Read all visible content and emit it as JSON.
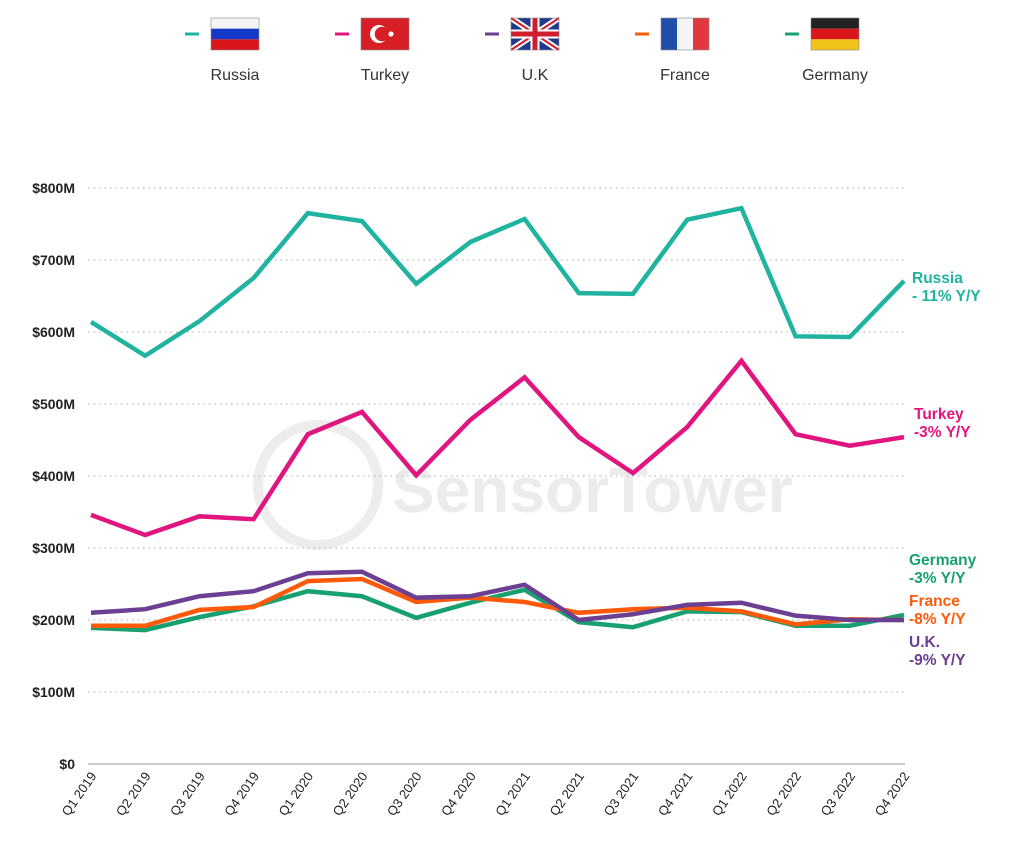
{
  "chart_data": {
    "type": "line",
    "title": "",
    "xlabel": "",
    "ylabel": "",
    "watermark": "SensorTower",
    "categories": [
      "Q1 2019",
      "Q2 2019",
      "Q3 2019",
      "Q4 2019",
      "Q1 2020",
      "Q2 2020",
      "Q3 2020",
      "Q4 2020",
      "Q1 2021",
      "Q2 2021",
      "Q3 2021",
      "Q4 2021",
      "Q1 2022",
      "Q2 2022",
      "Q3 2022",
      "Q4 2022"
    ],
    "ylim": [
      0,
      800
    ],
    "yticks": [
      {
        "value": 0,
        "label": "$0"
      },
      {
        "value": 100,
        "label": "$100M"
      },
      {
        "value": 200,
        "label": "$200M"
      },
      {
        "value": 300,
        "label": "$300M"
      },
      {
        "value": 400,
        "label": "$400M"
      },
      {
        "value": 500,
        "label": "$500M"
      },
      {
        "value": 600,
        "label": "$600M"
      },
      {
        "value": 700,
        "label": "$700M"
      },
      {
        "value": 800,
        "label": "$800M"
      }
    ],
    "grid": "horizontal-dotted",
    "legend_position": "top",
    "series": [
      {
        "name": "Russia",
        "color": "#1fb3a0",
        "flag": "russia-flag",
        "end_label": [
          "Russia",
          "- 11% Y/Y"
        ],
        "values": [
          614,
          567,
          615,
          675,
          765,
          754,
          667,
          725,
          757,
          654,
          653,
          756,
          772,
          594,
          593,
          671
        ]
      },
      {
        "name": "Turkey",
        "color": "#e0157f",
        "flag": "turkey-flag",
        "end_label": [
          "Turkey",
          "-3% Y/Y"
        ],
        "values": [
          346,
          318,
          344,
          340,
          458,
          489,
          401,
          478,
          537,
          454,
          404,
          468,
          560,
          458,
          442,
          454
        ]
      },
      {
        "name": "U.K",
        "color": "#6b3f91",
        "flag": "uk-flag",
        "end_label": [
          "U.K.",
          "-9% Y/Y"
        ],
        "values": [
          210,
          215,
          233,
          240,
          265,
          267,
          231,
          233,
          249,
          200,
          208,
          221,
          224,
          206,
          200,
          200
        ]
      },
      {
        "name": "France",
        "color": "#ff5a0a",
        "flag": "france-flag",
        "end_label": [
          "France",
          "-8% Y/Y"
        ],
        "values": [
          192,
          192,
          214,
          218,
          254,
          257,
          225,
          231,
          225,
          210,
          215,
          217,
          212,
          194,
          201,
          200
        ]
      },
      {
        "name": "Germany",
        "color": "#18a070",
        "flag": "germany-flag",
        "end_label": [
          "Germany",
          "-3% Y/Y"
        ],
        "values": [
          189,
          186,
          204,
          219,
          240,
          233,
          203,
          224,
          242,
          197,
          190,
          212,
          211,
          192,
          192,
          207
        ]
      }
    ]
  }
}
